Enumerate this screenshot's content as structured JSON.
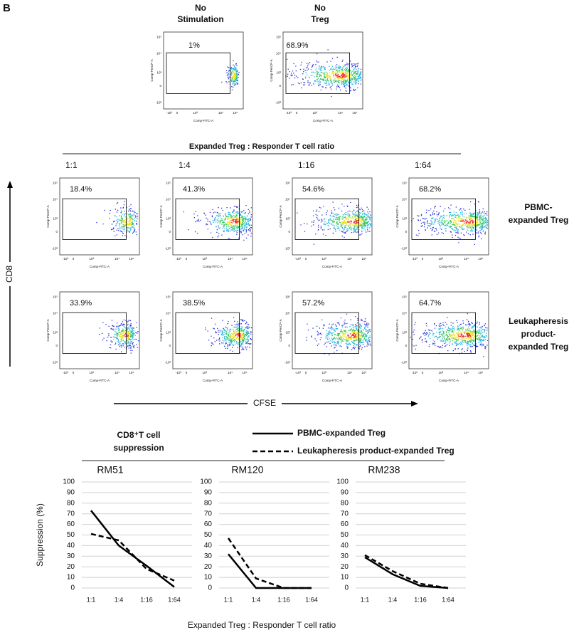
{
  "panel_label": "B",
  "flow": {
    "y_axis_label": "Comp-PerCP-A",
    "x_axis_label": "Comp-FITC-A",
    "y_tick_labels": [
      "10⁵",
      "10⁴",
      "10³",
      "0",
      "-10³"
    ],
    "x_tick_labels": [
      "-10³",
      "0",
      "10³",
      "10⁴",
      "10⁵"
    ],
    "controls": [
      {
        "title_lines": [
          "No",
          "Stimulation"
        ],
        "percent": "1%"
      },
      {
        "title_lines": [
          "No",
          "Treg"
        ],
        "percent": "68.9%"
      }
    ],
    "ratio_title": "Expanded Treg : Responder T cell ratio",
    "ratios": [
      "1:1",
      "1:4",
      "1:16",
      "1:64"
    ],
    "rows": [
      {
        "label_lines": [
          "PBMC-",
          "expanded Treg"
        ],
        "percents": [
          "18.4%",
          "41.3%",
          "54.6%",
          "68.2%"
        ]
      },
      {
        "label_lines": [
          "Leukapheresis",
          "product-",
          "expanded Treg"
        ],
        "percents": [
          "33.9%",
          "38.5%",
          "57.2%",
          "64.7%"
        ]
      }
    ],
    "y_arrow_label": "CD8",
    "x_arrow_label": "CFSE"
  },
  "suppression_title_lines": [
    "CD8⁺T cell",
    "suppression"
  ],
  "chart_data": [
    {
      "type": "line",
      "title": "RM51",
      "y_label": "Suppression (%)",
      "categories": [
        "1:1",
        "1:4",
        "1:16",
        "1:64"
      ],
      "series": [
        {
          "name": "PBMC-expanded Treg",
          "color": "#000000",
          "line_style": "solid",
          "values": [
            73,
            40,
            21,
            1
          ]
        },
        {
          "name": "Leukapheresis product-expanded Treg",
          "color": "#000000",
          "line_style": "dashed",
          "values": [
            51,
            45,
            18,
            7
          ]
        }
      ],
      "ylim": [
        0,
        100
      ],
      "yticks": [
        0,
        10,
        20,
        30,
        40,
        50,
        60,
        70,
        80,
        90,
        100
      ],
      "grid": true
    },
    {
      "type": "line",
      "title": "RM120",
      "categories": [
        "1:1",
        "1:4",
        "1:16",
        "1:64"
      ],
      "series": [
        {
          "name": "PBMC-expanded Treg",
          "color": "#000000",
          "line_style": "solid",
          "values": [
            32,
            0,
            0,
            0
          ]
        },
        {
          "name": "Leukapheresis product-expanded Treg",
          "color": "#000000",
          "line_style": "dashed",
          "values": [
            47,
            9,
            0,
            0
          ]
        }
      ],
      "ylim": [
        0,
        100
      ],
      "yticks": [
        0,
        10,
        20,
        30,
        40,
        50,
        60,
        70,
        80,
        90,
        100
      ],
      "grid": true
    },
    {
      "type": "line",
      "title": "RM238",
      "categories": [
        "1:1",
        "1:4",
        "1:16",
        "1:64"
      ],
      "series": [
        {
          "name": "PBMC-expanded Treg",
          "color": "#000000",
          "line_style": "solid",
          "values": [
            29,
            13,
            2,
            0
          ]
        },
        {
          "name": "Leukapheresis product-expanded Treg",
          "color": "#000000",
          "line_style": "dashed",
          "values": [
            31,
            16,
            4,
            0
          ]
        }
      ],
      "ylim": [
        0,
        100
      ],
      "yticks": [
        0,
        10,
        20,
        30,
        40,
        50,
        60,
        70,
        80,
        90,
        100
      ],
      "grid": true
    }
  ],
  "suppression_x_label": "Expanded Treg : Responder T cell ratio"
}
